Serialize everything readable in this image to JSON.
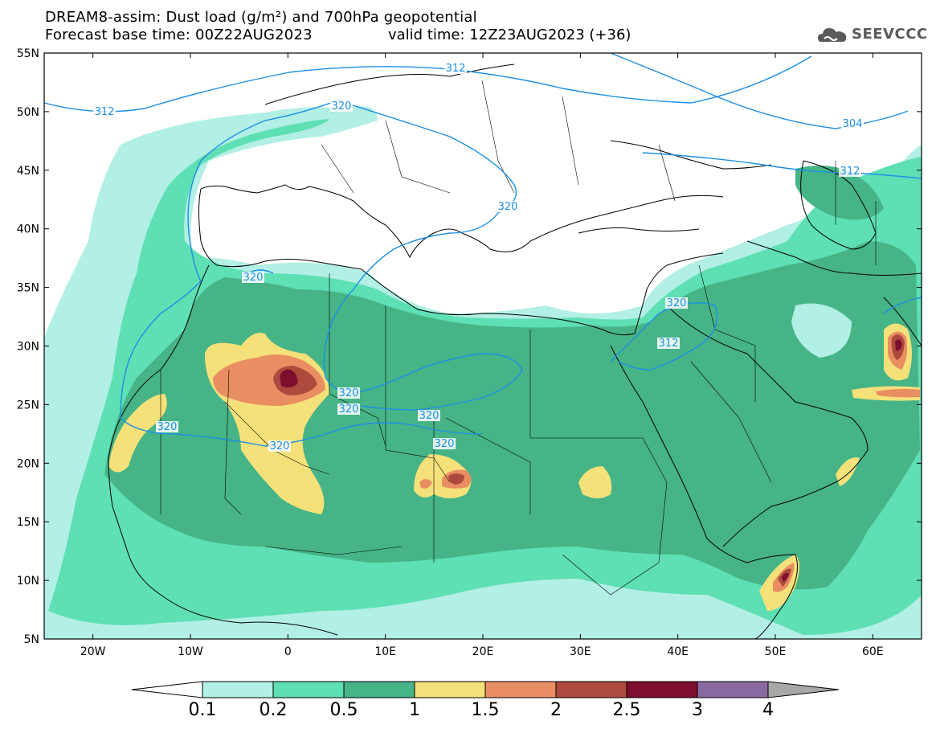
{
  "title": {
    "line1": "DREAM8-assim: Dust load (g/m²) and 700hPa geopotential",
    "line2": "Forecast base time: 00Z22AUG2023",
    "valid": "valid time: 12Z23AUG2023 (+36)"
  },
  "logo": {
    "text": "SEEVCCC",
    "icon": "cloud-logo-icon"
  },
  "map": {
    "lon_range": [
      -25,
      65
    ],
    "lat_range": [
      5,
      55
    ],
    "lat_labels": [
      "55N",
      "50N",
      "45N",
      "40N",
      "35N",
      "30N",
      "25N",
      "20N",
      "15N",
      "10N",
      "5N"
    ],
    "lon_labels": [
      "20W",
      "10W",
      "0",
      "10E",
      "20E",
      "30E",
      "40E",
      "50E",
      "60E"
    ]
  },
  "contours": {
    "labels": [
      "312",
      "312",
      "304",
      "312",
      "320",
      "320",
      "320",
      "320",
      "320",
      "320",
      "320",
      "320",
      "320",
      "320",
      "312"
    ]
  },
  "colorbar": {
    "ticks": [
      "0.1",
      "0.2",
      "0.5",
      "1",
      "1.5",
      "2",
      "2.5",
      "3",
      "4"
    ],
    "colors": [
      "#b2efe4",
      "#5edfb4",
      "#46b486",
      "#f5e17a",
      "#e98e62",
      "#ad4a3e",
      "#7d0e2e",
      "#8a6aa0",
      "#a7a7a7"
    ]
  },
  "palette": {
    "c1": "#b2efe4",
    "c2": "#5edfb4",
    "c3": "#46b486",
    "c4": "#f5e17a",
    "c5": "#e98e62",
    "c6": "#ad4a3e",
    "c7": "#7d0e2e",
    "contour": "#1e8fe6"
  }
}
